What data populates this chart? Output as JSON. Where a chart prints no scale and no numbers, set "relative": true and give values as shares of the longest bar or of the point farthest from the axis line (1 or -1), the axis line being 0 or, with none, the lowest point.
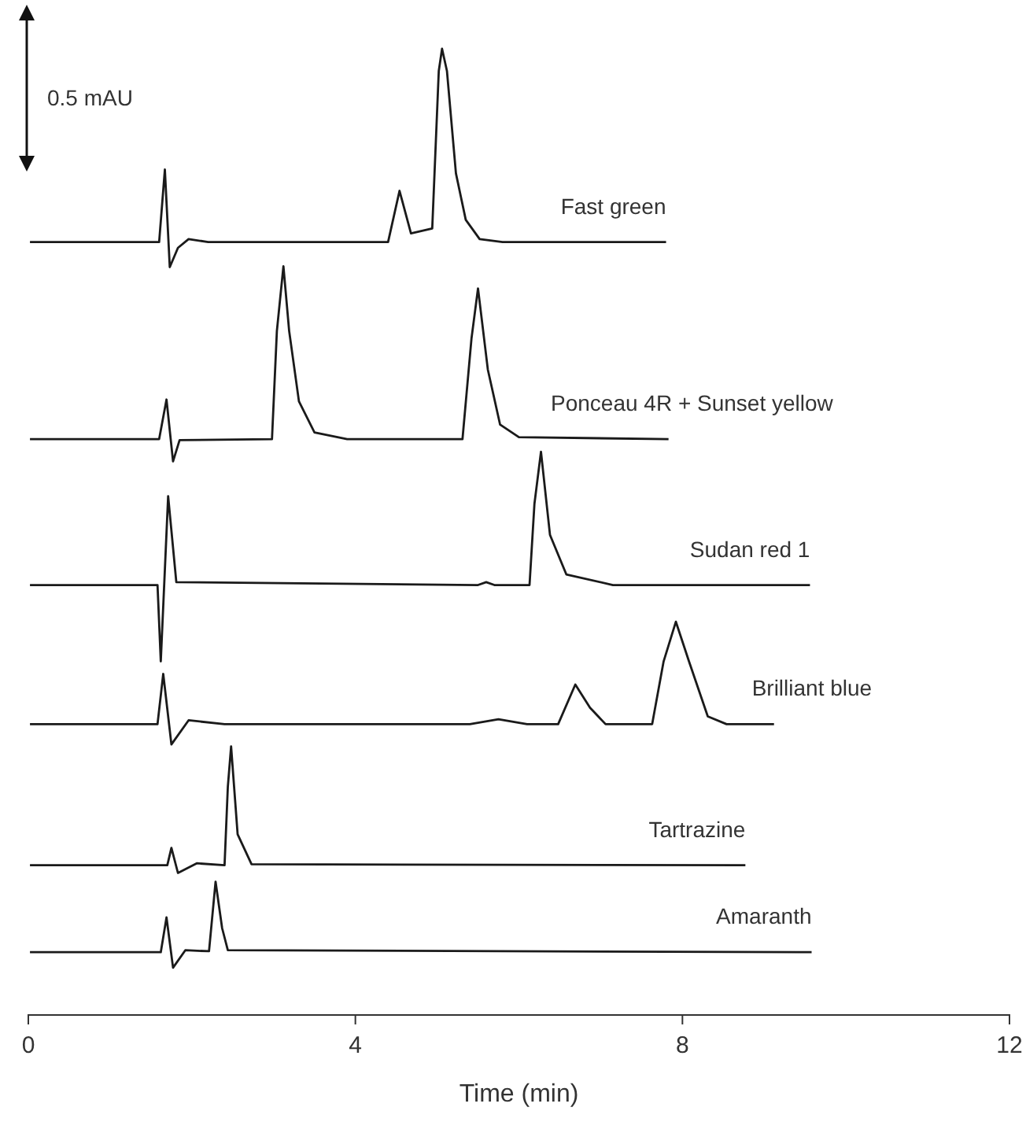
{
  "chart_data": {
    "type": "line",
    "relative": true,
    "xlabel": "Time (min)",
    "xlim": [
      0,
      12
    ],
    "xticks": [
      0,
      4,
      8,
      12
    ],
    "grid": false,
    "marker": "none",
    "line_style": "solid",
    "annotations": [
      "0.5 mAU"
    ],
    "series": [
      {
        "name": "Fast green",
        "color": "#1a1a1a",
        "x": [
          0.02,
          1.6,
          1.67,
          1.73,
          1.83,
          1.96,
          2.2,
          4.4,
          4.54,
          4.68,
          4.94,
          5.02,
          5.06,
          5.12,
          5.23,
          5.35,
          5.52,
          5.8,
          7.8
        ],
        "values": [
          0.8,
          0.8,
          0.875,
          0.774,
          0.794,
          0.803,
          0.8,
          0.8,
          0.853,
          0.809,
          0.814,
          0.977,
          1.0,
          0.977,
          0.871,
          0.823,
          0.803,
          0.8,
          0.8
        ]
      },
      {
        "name": "Ponceau 4R + Sunset yellow",
        "color": "#1a1a1a",
        "x": [
          0.02,
          1.6,
          1.69,
          1.77,
          1.85,
          2.98,
          3.04,
          3.12,
          3.19,
          3.31,
          3.5,
          3.9,
          5.31,
          5.42,
          5.5,
          5.62,
          5.77,
          6.0,
          7.83
        ],
        "values": [
          0.596,
          0.596,
          0.637,
          0.573,
          0.595,
          0.596,
          0.708,
          0.775,
          0.708,
          0.635,
          0.603,
          0.596,
          0.596,
          0.7,
          0.752,
          0.668,
          0.611,
          0.598,
          0.596
        ]
      },
      {
        "name": "Sudan red 1",
        "color": "#1a1a1a",
        "x": [
          0.02,
          1.58,
          1.62,
          1.71,
          1.81,
          5.5,
          5.6,
          5.7,
          6.13,
          6.19,
          6.27,
          6.38,
          6.58,
          7.15,
          9.56
        ],
        "values": [
          0.445,
          0.445,
          0.366,
          0.537,
          0.448,
          0.445,
          0.448,
          0.445,
          0.445,
          0.529,
          0.583,
          0.497,
          0.456,
          0.445,
          0.445
        ]
      },
      {
        "name": "Brilliant blue",
        "color": "#1a1a1a",
        "x": [
          0.02,
          1.58,
          1.65,
          1.75,
          1.96,
          2.4,
          5.4,
          5.75,
          6.1,
          6.48,
          6.69,
          6.87,
          7.06,
          7.63,
          7.77,
          7.92,
          8.08,
          8.31,
          8.54,
          9.12
        ],
        "values": [
          0.301,
          0.301,
          0.353,
          0.28,
          0.305,
          0.301,
          0.301,
          0.306,
          0.301,
          0.301,
          0.342,
          0.318,
          0.301,
          0.301,
          0.366,
          0.407,
          0.366,
          0.309,
          0.301,
          0.301
        ]
      },
      {
        "name": "Tartrazine",
        "color": "#1a1a1a",
        "x": [
          0.02,
          1.7,
          1.75,
          1.83,
          2.06,
          2.4,
          2.44,
          2.48,
          2.56,
          2.73,
          8.77
        ],
        "values": [
          0.155,
          0.155,
          0.173,
          0.147,
          0.157,
          0.155,
          0.236,
          0.278,
          0.187,
          0.156,
          0.155
        ]
      },
      {
        "name": "Amaranth",
        "color": "#1a1a1a",
        "x": [
          0.02,
          1.62,
          1.69,
          1.77,
          1.92,
          2.21,
          2.29,
          2.37,
          2.44,
          9.58
        ],
        "values": [
          0.065,
          0.065,
          0.101,
          0.049,
          0.067,
          0.066,
          0.138,
          0.09,
          0.067,
          0.065
        ]
      }
    ]
  }
}
